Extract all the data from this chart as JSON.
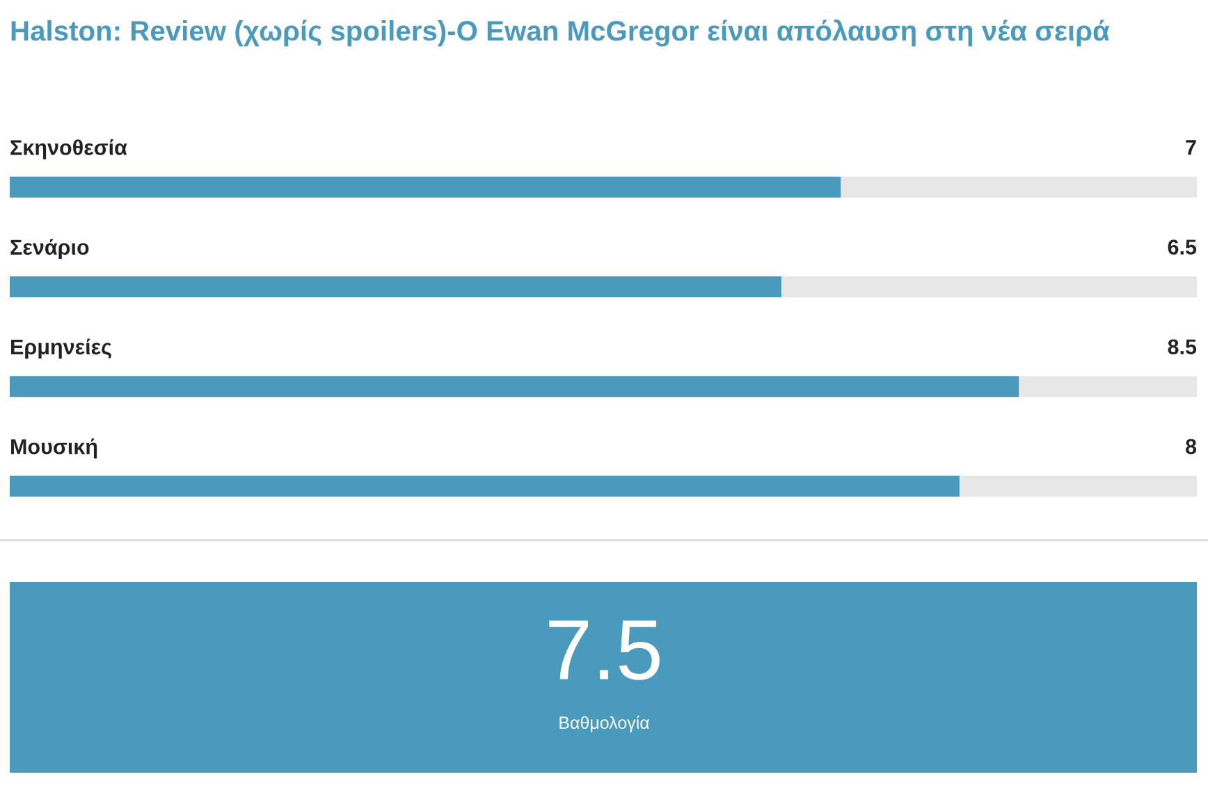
{
  "chart_data": {
    "type": "bar",
    "orientation": "horizontal",
    "title": "Halston: Review (χωρίς spoilers)-O Ewan McGregor είναι απόλαυση στη νέα σειρά",
    "categories": [
      "Σκηνοθεσία",
      "Σενάριο",
      "Ερμηνείες",
      "Μουσική"
    ],
    "values": [
      7,
      6.5,
      8.5,
      8
    ],
    "color": "#4a9abd",
    "xlim": [
      0,
      10
    ],
    "data_labels": true,
    "legend": false,
    "annotations": [
      "7.5",
      "Βαθμολογία"
    ]
  }
}
